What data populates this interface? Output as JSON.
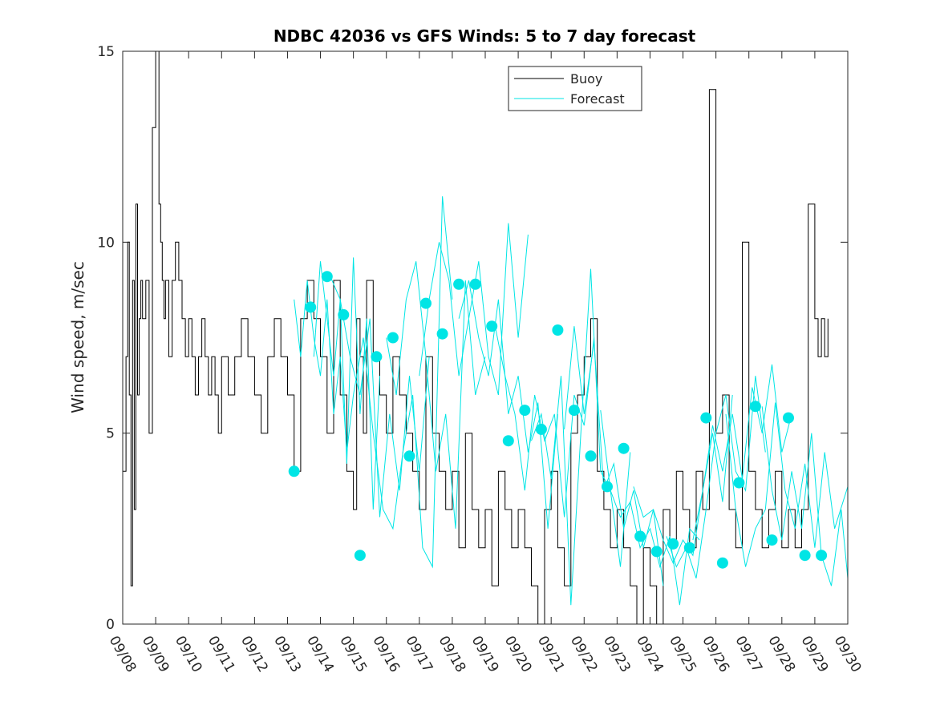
{
  "chart_data": {
    "type": "line",
    "title": "NDBC 42036 vs GFS Winds: 5 to 7 day forecast",
    "xlabel": "",
    "ylabel": "Wind speed, m/sec",
    "xlim": [
      0,
      22
    ],
    "ylim": [
      0,
      15
    ],
    "x_ticks": [
      "09/08",
      "09/09",
      "09/10",
      "09/11",
      "09/12",
      "09/13",
      "09/14",
      "09/15",
      "09/16",
      "09/17",
      "09/18",
      "09/19",
      "09/20",
      "09/21",
      "09/22",
      "09/23",
      "09/24",
      "09/25",
      "09/26",
      "09/27",
      "09/28",
      "09/29",
      "09/30"
    ],
    "y_ticks": [
      0,
      5,
      10,
      15
    ],
    "legend": [
      "Buoy",
      "Forecast"
    ],
    "legend_position": "top-center",
    "colors": {
      "buoy": "#000000",
      "forecast": "#00e5e5",
      "axis": "#262626"
    },
    "series": [
      {
        "name": "Buoy",
        "x": [
          0.0,
          0.1,
          0.15,
          0.2,
          0.25,
          0.3,
          0.35,
          0.4,
          0.45,
          0.5,
          0.55,
          0.6,
          0.7,
          0.8,
          0.9,
          1.0,
          1.1,
          1.15,
          1.2,
          1.25,
          1.3,
          1.4,
          1.5,
          1.6,
          1.7,
          1.8,
          1.9,
          2.0,
          2.1,
          2.2,
          2.3,
          2.4,
          2.5,
          2.6,
          2.7,
          2.8,
          2.9,
          3.0,
          3.2,
          3.4,
          3.6,
          3.8,
          4.0,
          4.2,
          4.4,
          4.6,
          4.8,
          5.0,
          5.2,
          5.4,
          5.6,
          5.8,
          6.0,
          6.2,
          6.4,
          6.6,
          6.8,
          7.0,
          7.1,
          7.2,
          7.3,
          7.4,
          7.6,
          7.8,
          8.0,
          8.2,
          8.4,
          8.6,
          8.8,
          9.0,
          9.2,
          9.4,
          9.6,
          9.8,
          10.0,
          10.2,
          10.4,
          10.6,
          10.8,
          11.0,
          11.2,
          11.4,
          11.6,
          11.8,
          12.0,
          12.2,
          12.4,
          12.6,
          12.8,
          13.0,
          13.2,
          13.4,
          13.6,
          13.8,
          14.0,
          14.2,
          14.4,
          14.6,
          14.8,
          15.0,
          15.2,
          15.4,
          15.6,
          15.8,
          16.0,
          16.2,
          16.4,
          16.6,
          16.8,
          17.0,
          17.2,
          17.4,
          17.6,
          17.8,
          18.0,
          18.2,
          18.4,
          18.6,
          18.8,
          19.0,
          19.2,
          19.4,
          19.6,
          19.8,
          20.0,
          20.2,
          20.4,
          20.6,
          20.8,
          21.0,
          21.1,
          21.2,
          21.3,
          21.4
        ],
        "values": [
          4,
          7,
          10,
          6,
          1,
          9,
          3,
          11,
          6,
          8,
          9,
          8,
          9,
          5,
          13,
          15,
          11,
          10,
          9,
          8,
          9,
          7,
          9,
          10,
          9,
          8,
          7,
          8,
          7,
          6,
          7,
          8,
          7,
          6,
          7,
          6,
          5,
          7,
          6,
          7,
          8,
          7,
          6,
          5,
          7,
          8,
          7,
          6,
          4,
          8,
          9,
          8,
          7,
          5,
          9,
          6,
          4,
          3,
          8,
          7,
          5,
          9,
          7,
          6,
          5,
          7,
          6,
          5,
          4,
          3,
          7,
          5,
          4,
          3,
          4,
          2,
          5,
          3,
          2,
          3,
          1,
          4,
          3,
          2,
          3,
          2,
          1,
          0,
          3,
          4,
          2,
          1,
          5,
          6,
          7,
          8,
          4,
          3,
          2,
          3,
          2,
          1,
          0,
          2,
          1,
          0,
          3,
          2,
          4,
          3,
          2,
          4,
          3,
          14,
          5,
          6,
          3,
          2,
          10,
          4,
          3,
          2,
          3,
          4,
          2,
          3,
          2,
          3,
          11,
          8,
          7,
          8,
          7,
          8
        ]
      },
      {
        "name": "Forecast",
        "runs": [
          {
            "x": [
              5.2,
              5.4,
              5.6,
              5.8,
              6.0,
              6.2,
              6.4,
              6.6,
              6.8,
              7.0
            ],
            "values": [
              8.5,
              7.0,
              9.0,
              7.5,
              6.5,
              8.5,
              5.5,
              7.0,
              4.5,
              6.0
            ]
          },
          {
            "x": [
              5.8,
              6.0,
              6.2,
              6.4,
              6.6,
              6.8,
              7.0,
              7.2,
              7.4,
              7.6,
              7.8
            ],
            "values": [
              7.0,
              9.5,
              8.0,
              6.5,
              8.5,
              4.2,
              9.6,
              5.5,
              8.0,
              3.0,
              6.5
            ]
          },
          {
            "x": [
              6.3,
              6.6,
              6.9,
              7.2,
              7.5,
              7.8,
              8.1,
              8.4,
              8.7,
              9.0,
              9.3
            ],
            "values": [
              9.1,
              8.5,
              7.0,
              6.0,
              8.0,
              2.8,
              5.5,
              3.5,
              6.5,
              4.0,
              7.0
            ]
          },
          {
            "x": [
              7.0,
              7.3,
              7.6,
              7.9,
              8.2,
              8.5,
              8.8,
              9.1,
              9.4,
              9.7,
              10.0
            ],
            "values": [
              6.0,
              7.5,
              5.0,
              3.0,
              2.5,
              4.5,
              6.0,
              2.0,
              1.5,
              11.2,
              8.5
            ]
          },
          {
            "x": [
              8.0,
              8.3,
              8.6,
              8.9,
              9.2,
              9.5,
              9.8,
              10.1,
              10.4,
              10.7,
              11.0
            ],
            "values": [
              7.5,
              6.0,
              8.5,
              9.5,
              7.0,
              4.0,
              5.5,
              2.5,
              9.0,
              6.0,
              7.0
            ]
          },
          {
            "x": [
              9.0,
              9.3,
              9.6,
              9.9,
              10.2,
              10.5,
              10.8,
              11.1,
              11.4,
              11.7,
              12.0,
              12.3
            ],
            "values": [
              6.5,
              8.5,
              10.0,
              9.0,
              6.5,
              8.0,
              9.5,
              7.0,
              6.0,
              10.5,
              7.5,
              10.2
            ]
          },
          {
            "x": [
              10.2,
              10.5,
              10.8,
              11.1,
              11.4,
              11.7,
              12.0,
              12.3,
              12.6,
              12.9,
              13.2
            ],
            "values": [
              8.0,
              9.0,
              7.5,
              6.5,
              8.5,
              5.5,
              6.5,
              4.5,
              5.8,
              2.5,
              5.5
            ]
          },
          {
            "x": [
              11.3,
              11.6,
              11.9,
              12.2,
              12.5,
              12.8,
              13.1,
              13.4,
              13.7,
              14.0,
              14.3
            ],
            "values": [
              7.8,
              6.5,
              5.5,
              3.5,
              6.0,
              4.8,
              5.5,
              2.8,
              6.0,
              5.2,
              7.5
            ]
          },
          {
            "x": [
              12.4,
              12.7,
              13.0,
              13.3,
              13.6,
              13.9,
              14.2,
              14.5,
              14.8,
              15.1,
              15.4
            ],
            "values": [
              4.8,
              5.5,
              3.8,
              6.5,
              0.5,
              5.0,
              9.3,
              4.0,
              3.5,
              1.5,
              4.5
            ]
          },
          {
            "x": [
              13.4,
              13.7,
              14.0,
              14.3,
              14.6,
              14.9,
              15.2,
              15.5,
              15.8,
              16.1,
              16.4
            ],
            "values": [
              5.1,
              7.8,
              5.5,
              7.4,
              3.5,
              4.2,
              2.5,
              3.5,
              2.0,
              3.0,
              1.0
            ]
          },
          {
            "x": [
              14.5,
              14.8,
              15.1,
              15.4,
              15.7,
              16.0,
              16.3,
              16.6,
              16.9,
              17.2,
              17.5
            ],
            "values": [
              5.6,
              3.5,
              2.8,
              3.2,
              2.0,
              2.5,
              1.5,
              2.3,
              0.5,
              2.5,
              2.2
            ]
          },
          {
            "x": [
              15.5,
              15.8,
              16.1,
              16.4,
              16.7,
              17.0,
              17.3,
              17.6,
              17.9,
              18.2,
              18.5
            ],
            "values": [
              3.6,
              2.8,
              3.0,
              2.2,
              1.6,
              2.2,
              1.8,
              3.5,
              5.0,
              3.2,
              6.0
            ]
          },
          {
            "x": [
              16.5,
              16.8,
              17.1,
              17.4,
              17.7,
              18.0,
              18.3,
              18.6,
              18.9,
              19.2,
              19.5
            ],
            "values": [
              2.3,
              1.5,
              2.0,
              1.2,
              3.0,
              5.0,
              6.0,
              4.0,
              3.5,
              6.5,
              4.5
            ]
          },
          {
            "x": [
              17.3,
              17.6,
              17.9,
              18.2,
              18.5,
              18.8,
              19.1,
              19.4,
              19.7,
              20.0,
              20.3
            ],
            "values": [
              2.2,
              3.5,
              5.2,
              4.0,
              5.5,
              3.8,
              6.2,
              5.0,
              6.8,
              4.5,
              5.5
            ]
          },
          {
            "x": [
              18.3,
              18.6,
              18.9,
              19.2,
              19.5,
              19.8,
              20.1,
              20.4,
              20.7,
              21.0,
              21.3,
              21.6,
              22.0
            ],
            "values": [
              5.5,
              3.0,
              1.5,
              2.5,
              3.0,
              5.8,
              3.5,
              2.5,
              4.2,
              2.0,
              4.5,
              2.5,
              3.6
            ]
          },
          {
            "x": [
              19.4,
              19.7,
              20.0,
              20.3,
              20.6,
              20.9,
              21.2,
              21.5,
              21.8,
              22.0
            ],
            "values": [
              5.7,
              3.5,
              2.2,
              4.0,
              2.5,
              5.0,
              1.8,
              1.0,
              3.0,
              1.2
            ]
          }
        ],
        "markers": {
          "x": [
            5.2,
            5.7,
            6.2,
            6.7,
            7.2,
            7.7,
            8.2,
            8.7,
            9.2,
            9.7,
            10.2,
            10.7,
            11.2,
            11.7,
            12.2,
            12.7,
            13.2,
            13.7,
            14.2,
            14.7,
            15.2,
            15.7,
            16.2,
            16.7,
            17.2,
            17.7,
            18.2,
            18.7,
            19.2,
            19.7,
            20.2,
            20.7,
            21.2
          ],
          "values": [
            4.0,
            8.3,
            9.1,
            8.1,
            1.8,
            7.0,
            7.5,
            4.4,
            8.4,
            7.6,
            8.9,
            8.9,
            7.8,
            4.8,
            5.6,
            5.1,
            7.7,
            5.6,
            4.4,
            3.6,
            4.6,
            2.3,
            1.9,
            2.1,
            2.0,
            5.4,
            1.6,
            3.7,
            5.7,
            2.2,
            5.4,
            1.8,
            1.8
          ]
        }
      }
    ]
  }
}
